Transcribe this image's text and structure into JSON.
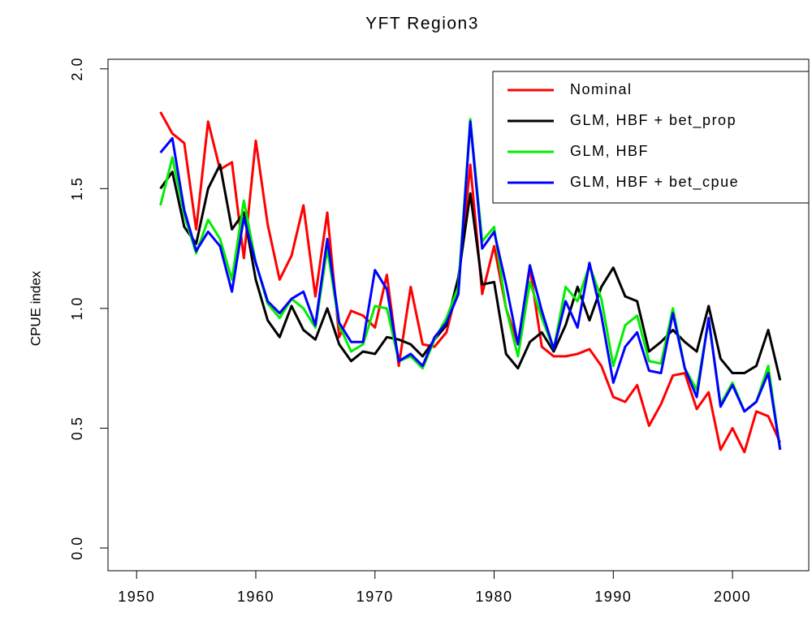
{
  "chart_data": {
    "type": "line",
    "title": "YFT Region3",
    "ylabel": "CPUE index",
    "x": [
      1952,
      1953,
      1954,
      1955,
      1956,
      1957,
      1958,
      1959,
      1960,
      1961,
      1962,
      1963,
      1964,
      1965,
      1966,
      1967,
      1968,
      1969,
      1970,
      1971,
      1972,
      1973,
      1974,
      1975,
      1976,
      1977,
      1978,
      1979,
      1980,
      1981,
      1982,
      1983,
      1984,
      1985,
      1986,
      1987,
      1988,
      1989,
      1990,
      1991,
      1992,
      1993,
      1994,
      1995,
      1996,
      1997,
      1998,
      1999,
      2000,
      2001,
      2002,
      2003,
      2004
    ],
    "series": [
      {
        "name": "Nominal",
        "color": "#ff0000",
        "values": [
          1.82,
          1.73,
          1.69,
          1.33,
          1.78,
          1.58,
          1.61,
          1.21,
          1.7,
          1.35,
          1.12,
          1.22,
          1.43,
          1.05,
          1.4,
          0.88,
          0.99,
          0.97,
          0.92,
          1.14,
          0.76,
          1.09,
          0.85,
          0.84,
          0.9,
          1.1,
          1.6,
          1.06,
          1.26,
          1.0,
          0.85,
          1.17,
          0.84,
          0.8,
          0.8,
          0.81,
          0.83,
          0.76,
          0.63,
          0.61,
          0.68,
          0.51,
          0.6,
          0.72,
          0.73,
          0.58,
          0.65,
          0.41,
          0.5,
          0.4,
          0.57,
          0.55,
          0.44
        ]
      },
      {
        "name": "GLM, HBF + bet_prop",
        "color": "#000000",
        "values": [
          1.5,
          1.57,
          1.34,
          1.27,
          1.5,
          1.6,
          1.33,
          1.4,
          1.12,
          0.95,
          0.88,
          1.01,
          0.91,
          0.87,
          1.0,
          0.85,
          0.78,
          0.82,
          0.81,
          0.88,
          0.87,
          0.85,
          0.8,
          0.87,
          0.93,
          1.13,
          1.48,
          1.1,
          1.11,
          0.81,
          0.75,
          0.86,
          0.9,
          0.82,
          0.93,
          1.09,
          0.95,
          1.09,
          1.17,
          1.05,
          1.03,
          0.82,
          0.86,
          0.91,
          0.86,
          0.82,
          1.01,
          0.79,
          0.73,
          0.73,
          0.76,
          0.91,
          0.7
        ]
      },
      {
        "name": "GLM, HBF",
        "color": "#00ee00",
        "values": [
          1.43,
          1.63,
          1.39,
          1.23,
          1.37,
          1.29,
          1.12,
          1.45,
          1.19,
          1.02,
          0.96,
          1.04,
          1.0,
          0.92,
          1.25,
          0.93,
          0.82,
          0.85,
          1.01,
          1.0,
          0.78,
          0.8,
          0.75,
          0.87,
          0.96,
          1.09,
          1.79,
          1.28,
          1.34,
          1.0,
          0.8,
          1.11,
          0.96,
          0.83,
          1.09,
          1.03,
          1.18,
          1.04,
          0.76,
          0.93,
          0.97,
          0.78,
          0.77,
          1.0,
          0.75,
          0.66,
          0.95,
          0.6,
          0.69,
          0.57,
          0.61,
          0.76,
          0.41
        ]
      },
      {
        "name": "GLM, HBF + bet_cpue",
        "color": "#0000ff",
        "values": [
          1.65,
          1.71,
          1.41,
          1.24,
          1.32,
          1.26,
          1.07,
          1.38,
          1.19,
          1.03,
          0.98,
          1.04,
          1.07,
          0.93,
          1.29,
          0.94,
          0.86,
          0.86,
          1.16,
          1.08,
          0.78,
          0.81,
          0.76,
          0.88,
          0.94,
          1.06,
          1.78,
          1.25,
          1.32,
          1.1,
          0.85,
          1.18,
          0.99,
          0.83,
          1.03,
          0.92,
          1.19,
          0.97,
          0.69,
          0.84,
          0.9,
          0.74,
          0.73,
          0.98,
          0.75,
          0.63,
          0.96,
          0.59,
          0.68,
          0.57,
          0.61,
          0.73,
          0.41
        ]
      }
    ],
    "xlim": [
      1947.6,
      2006.4
    ],
    "xticks": [
      1950,
      1960,
      1970,
      1980,
      1990,
      2000
    ],
    "ylim": [
      -0.095,
      2.04
    ],
    "yticks": [
      {
        "value": 0,
        "label": "0.0"
      },
      0.5,
      {
        "value": 1,
        "label": "1.0"
      },
      1.5,
      {
        "value": 2,
        "label": "2.0"
      }
    ],
    "grid": false,
    "legend": "topright"
  }
}
